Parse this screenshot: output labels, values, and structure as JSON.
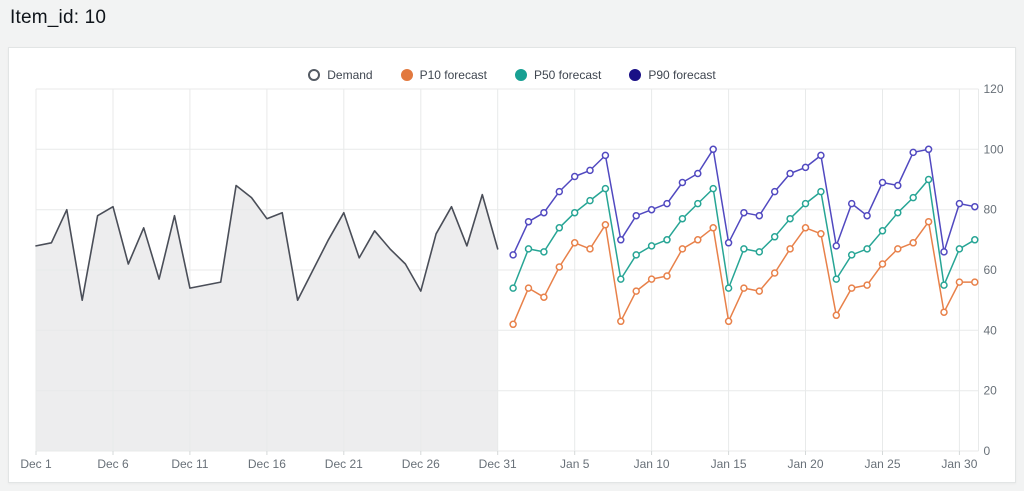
{
  "page": {
    "title": "Item_id: 10"
  },
  "legend": {
    "items": [
      {
        "label": "Demand",
        "swatch_fill": "#ffffff",
        "swatch_border": "#545b64"
      },
      {
        "label": "P10 forecast",
        "swatch_fill": "#e2793f",
        "swatch_border": "#e2793f"
      },
      {
        "label": "P50 forecast",
        "swatch_fill": "#18a093",
        "swatch_border": "#18a093"
      },
      {
        "label": "P90 forecast",
        "swatch_fill": "#1a1086",
        "swatch_border": "#1a1086"
      }
    ]
  },
  "colors": {
    "page_bg": "#f2f3f3",
    "card_bg": "#ffffff",
    "grid": "#e8eaea",
    "axis_tick": "#d5d9d9",
    "tick_text": "#687078",
    "demand_line": "#4a4e58",
    "demand_area_fill": "#ededee",
    "p10_line": "#e8814a",
    "p50_line": "#27a595",
    "p90_line": "#5149c0"
  },
  "chart_data": {
    "type": "line",
    "title": "Item_id: 10",
    "ylim": [
      0,
      120
    ],
    "y_ticks": [
      0,
      20,
      40,
      60,
      80,
      100,
      120
    ],
    "x_tick_labels": [
      "Dec 1",
      "Dec 6",
      "Dec 11",
      "Dec 16",
      "Dec 21",
      "Dec 26",
      "Dec 31",
      "Jan 5",
      "Jan 10",
      "Jan 15",
      "Jan 20",
      "Jan 25",
      "Jan 30"
    ],
    "x_tick_days": [
      0,
      5,
      10,
      15,
      20,
      25,
      30,
      35,
      40,
      45,
      50,
      55,
      60
    ],
    "total_days": 61,
    "historical_window": [
      "Dec 1",
      "Dec 31"
    ],
    "forecast_window": [
      "Jan 1",
      "Jan 31"
    ],
    "grid": true,
    "legend_position": "top-center",
    "y_axis_side": "right",
    "series": [
      {
        "name": "Demand",
        "kind": "area-line",
        "start_day": 0,
        "dates_note": "Dec 1 - Dec 31",
        "values": [
          68,
          69,
          80,
          50,
          78,
          81,
          62,
          74,
          57,
          78,
          54,
          55,
          56,
          88,
          84,
          77,
          79,
          50,
          60,
          70,
          79,
          64,
          73,
          67,
          62,
          53,
          72,
          81,
          68,
          85,
          67
        ]
      },
      {
        "name": "P10 forecast",
        "kind": "line-marker",
        "start_day": 31,
        "dates_note": "Jan 1 - Jan 31",
        "values": [
          42,
          54,
          51,
          61,
          69,
          67,
          75,
          43,
          53,
          57,
          58,
          67,
          70,
          74,
          43,
          54,
          53,
          59,
          67,
          74,
          72,
          45,
          54,
          55,
          62,
          67,
          69,
          76,
          46,
          56,
          56
        ]
      },
      {
        "name": "P50 forecast",
        "kind": "line-marker",
        "start_day": 31,
        "dates_note": "Jan 1 - Jan 31",
        "values": [
          54,
          67,
          66,
          74,
          79,
          83,
          87,
          57,
          65,
          68,
          70,
          77,
          82,
          87,
          54,
          67,
          66,
          71,
          77,
          82,
          86,
          57,
          65,
          67,
          73,
          79,
          84,
          90,
          55,
          67,
          70
        ]
      },
      {
        "name": "P90 forecast",
        "kind": "line-marker",
        "start_day": 31,
        "dates_note": "Jan 1 - Jan 31",
        "values": [
          65,
          76,
          79,
          86,
          91,
          93,
          98,
          70,
          78,
          80,
          82,
          89,
          92,
          100,
          69,
          79,
          78,
          86,
          92,
          94,
          98,
          68,
          82,
          78,
          89,
          88,
          99,
          100,
          66,
          82,
          81
        ]
      }
    ]
  }
}
